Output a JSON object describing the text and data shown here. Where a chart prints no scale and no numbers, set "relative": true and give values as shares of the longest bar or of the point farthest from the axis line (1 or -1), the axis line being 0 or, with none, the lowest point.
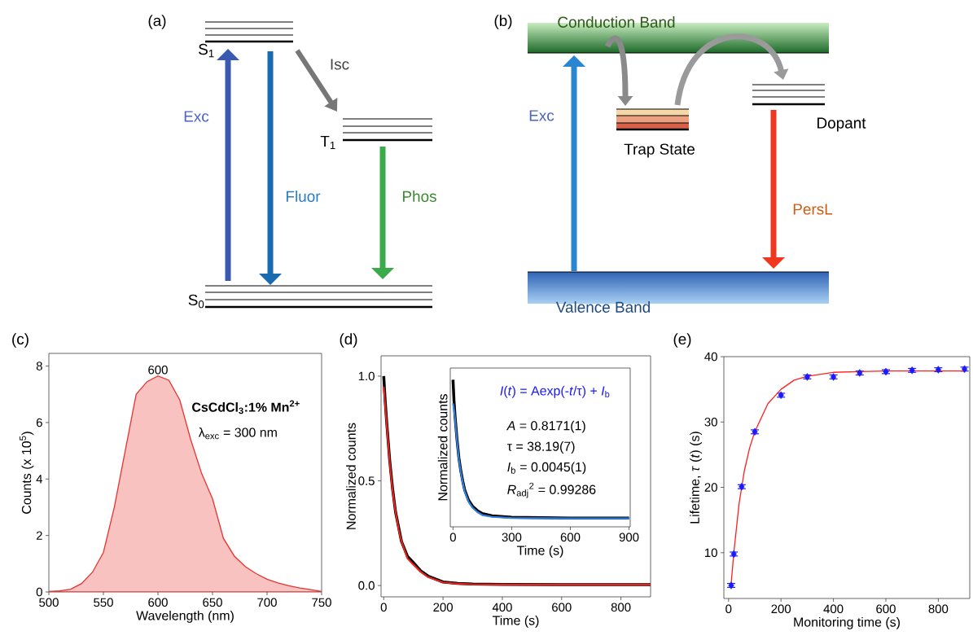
{
  "chart_data": [
    {
      "type": "other",
      "title": "(a)",
      "annotations": [
        "S$_{1}$",
        "Exc",
        "Isc",
        "T$_{1}$",
        "Fluor",
        "Phos",
        "S$_{0}$"
      ]
    },
    {
      "type": "other",
      "title": "(b)",
      "annotations": [
        "Conduction Band",
        "Exc",
        "Trap State",
        "Dopant",
        "PersL",
        "Valence Band"
      ]
    },
    {
      "type": "area",
      "title": "(c)",
      "xlabel": "Wavelength (nm)",
      "ylabel": "Counts (x 10$^{5}$)",
      "color": "#e8332f",
      "x": [
        500,
        510,
        520,
        530,
        540,
        550,
        560,
        570,
        580,
        590,
        600,
        610,
        620,
        630,
        640,
        650,
        660,
        670,
        680,
        690,
        700,
        710,
        720,
        730,
        740,
        750
      ],
      "values": [
        0.02,
        0.04,
        0.1,
        0.3,
        0.7,
        1.4,
        3.0,
        5.0,
        7.0,
        7.45,
        7.65,
        7.5,
        6.8,
        5.4,
        4.2,
        3.3,
        1.9,
        1.27,
        0.9,
        0.65,
        0.45,
        0.32,
        0.22,
        0.14,
        0.08,
        0.02
      ],
      "xlim": [
        500,
        750
      ],
      "ylim": [
        0,
        8.45
      ],
      "xticks": [
        500,
        550,
        600,
        650,
        700,
        750
      ],
      "yticks": [
        0,
        2,
        4,
        6,
        8
      ],
      "annotations": [
        {
          "text": "600",
          "x": 600,
          "y": 7.65
        },
        "CsCdCl$_{3}$:1% Mn$^{2+}$",
        "λ$_{exc}$ = 300 nm"
      ]
    },
    {
      "type": "line",
      "title": "(d)",
      "xlabel": "Time (s)",
      "ylabel": "Normalized counts",
      "series": [
        {
          "color": "#000000",
          "x": [
            0,
            5,
            10,
            20,
            30,
            40,
            50,
            60,
            80,
            100,
            125,
            150,
            200,
            250,
            300,
            400,
            600,
            900
          ],
          "values": [
            1.0,
            0.88,
            0.78,
            0.6,
            0.46,
            0.35,
            0.28,
            0.21,
            0.14,
            0.11,
            0.07,
            0.045,
            0.017,
            0.01,
            0.007,
            0.005,
            0.004,
            0.004
          ]
        },
        {
          "color": "#e8221c",
          "x": [
            0,
            5,
            10,
            20,
            30,
            40,
            50,
            60,
            80,
            100,
            125,
            150,
            200,
            250,
            300,
            400,
            600,
            900
          ],
          "values": [
            0.95,
            0.86,
            0.77,
            0.59,
            0.45,
            0.35,
            0.27,
            0.21,
            0.13,
            0.1,
            0.065,
            0.04,
            0.015,
            0.009,
            0.006,
            0.005,
            0.004,
            0.004
          ]
        }
      ],
      "xlim": [
        -9,
        900
      ],
      "ylim": [
        -0.054,
        1.097
      ],
      "xticks": [
        0,
        200,
        400,
        600,
        800
      ],
      "yticks": [
        {
          "value": 0,
          "label": "0.0"
        },
        {
          "value": 0.5,
          "label": "0.5"
        },
        {
          "value": 1,
          "label": "1.0"
        }
      ]
    },
    {
      "type": "line",
      "relative": true,
      "xlabel": "Time (s)",
      "ylabel": "Normalized counts",
      "tick_labels": "x",
      "series": [
        {
          "color": "#000000",
          "x": [
            0,
            5,
            10,
            20,
            30,
            40,
            50,
            60,
            80,
            100,
            125,
            150,
            200,
            300,
            600,
            900
          ],
          "values": [
            1.0,
            0.86,
            0.76,
            0.6,
            0.47,
            0.38,
            0.31,
            0.25,
            0.18,
            0.14,
            0.11,
            0.09,
            0.075,
            0.065,
            0.06,
            0.06
          ]
        },
        {
          "color": "#2f80e0",
          "x": [
            0,
            5,
            10,
            20,
            30,
            40,
            50,
            60,
            80,
            100,
            125,
            150,
            200,
            300,
            600,
            900
          ],
          "values": [
            0.84,
            0.8,
            0.74,
            0.59,
            0.46,
            0.37,
            0.3,
            0.24,
            0.17,
            0.13,
            0.1,
            0.08,
            0.068,
            0.06,
            0.057,
            0.057
          ]
        }
      ],
      "xlim": [
        -14,
        906
      ],
      "xticks": [
        0,
        300,
        600,
        900
      ],
      "annotations": [
        "*I*(*t*) = Aexp(-*t*/τ) + *I*$_{b}$",
        "*A* = 0.8171(1)",
        "τ = 38.19(7)",
        "*I*$_{b}$ = 0.0045(1)",
        "*R*$_{adj}$$^{2}$ = 0.99286"
      ]
    },
    {
      "type": "scatter",
      "title": "(e)",
      "xlabel": "Monitoring time (s)",
      "ylabel": "Lifetime, *τ* (*t*) (s)",
      "series": [
        {
          "type": "scatter",
          "color": "#1a1aff",
          "marker": "diamond",
          "x": [
            10,
            20,
            50,
            100,
            200,
            300,
            400,
            500,
            600,
            700,
            800,
            900
          ],
          "values": [
            5.0,
            9.8,
            20.1,
            28.5,
            34.1,
            36.9,
            36.9,
            37.5,
            37.7,
            37.9,
            38.0,
            38.1
          ],
          "errors": [
            0.3,
            0.3,
            0.3,
            0.3,
            0.3,
            0.3,
            0.3,
            0.3,
            0.3,
            0.3,
            0.3,
            0.3
          ]
        },
        {
          "type": "line",
          "color": "#ff2020",
          "x": [
            10,
            20,
            40,
            60,
            80,
            100,
            150,
            200,
            250,
            300,
            400,
            500,
            600,
            900
          ],
          "values": [
            5.3,
            10.0,
            17.5,
            22.5,
            26.0,
            28.5,
            32.8,
            35.0,
            36.4,
            37.0,
            37.6,
            37.7,
            37.8,
            37.8
          ]
        }
      ],
      "xlim": [
        -18,
        920
      ],
      "ylim": [
        3,
        40
      ],
      "xticks": [
        0,
        200,
        400,
        600,
        800
      ],
      "yticks": [
        10,
        20,
        30,
        40
      ]
    }
  ]
}
